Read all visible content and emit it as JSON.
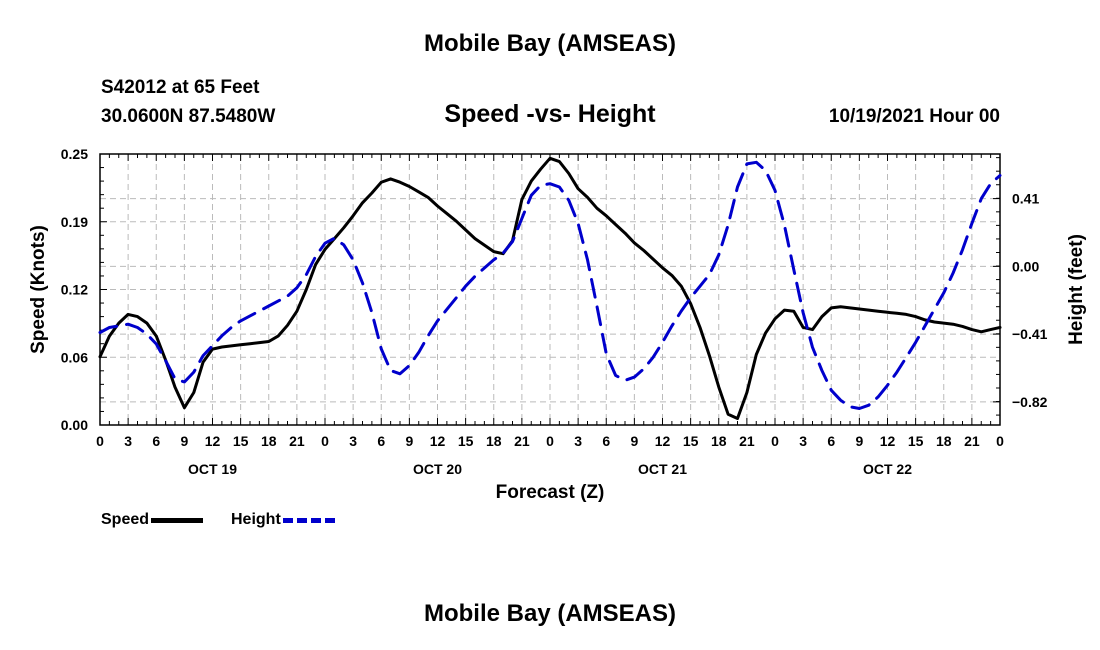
{
  "title": "Mobile Bay (AMSEAS)",
  "station": "S42012 at 65 Feet",
  "coords": "30.0600N  87.5480W",
  "valid_time": "10/19/2021 Hour 00",
  "footer_title": "Mobile Bay (AMSEAS)",
  "legend": {
    "speed": "Speed",
    "height": "Height"
  },
  "colors": {
    "speed": "#000000",
    "height": "#0000cc",
    "grid": "#bbbbbb"
  },
  "chart_data": {
    "type": "line",
    "title": "Speed -vs- Height",
    "xlabel": "Forecast (Z)",
    "ylabel": "Speed (Knots)",
    "y2label": "Height (feet)",
    "xlim": [
      0,
      96
    ],
    "ylim": [
      0,
      0.25
    ],
    "y2lim": [
      -0.96,
      0.68
    ],
    "yticks": [
      "0.00",
      "0.06",
      "0.12",
      "0.19",
      "0.25"
    ],
    "y2ticks": [
      {
        "value": 0.41,
        "label": "0.41"
      },
      {
        "value": 0.0,
        "label": "0.00"
      },
      {
        "value": -0.41,
        "label": "−0.41"
      },
      {
        "value": -0.82,
        "label": "−0.82"
      }
    ],
    "xticks": [
      "0",
      "3",
      "6",
      "9",
      "12",
      "15",
      "18",
      "21",
      "0",
      "3",
      "6",
      "9",
      "12",
      "15",
      "18",
      "21",
      "0",
      "3",
      "6",
      "9",
      "12",
      "15",
      "18",
      "21",
      "0",
      "3",
      "6",
      "9",
      "12",
      "15",
      "18",
      "21",
      "0"
    ],
    "day_labels": [
      {
        "hour": 12,
        "label": "OCT 19"
      },
      {
        "hour": 36,
        "label": "OCT 20"
      },
      {
        "hour": 60,
        "label": "OCT 21"
      },
      {
        "hour": 84,
        "label": "OCT 22"
      }
    ],
    "grid": true,
    "series": [
      {
        "name": "Speed",
        "axis": "left",
        "style": "solid",
        "x": [
          0,
          1,
          2,
          3,
          4,
          5,
          6,
          7,
          8,
          9,
          10,
          11,
          12,
          13,
          14,
          15,
          16,
          17,
          18,
          19,
          20,
          21,
          22,
          23,
          24,
          25,
          26,
          27,
          28,
          29,
          30,
          31,
          32,
          33,
          34,
          35,
          36,
          37,
          38,
          39,
          40,
          41,
          42,
          43,
          44,
          45,
          46,
          47,
          48,
          49,
          50,
          51,
          52,
          53,
          54,
          55,
          56,
          57,
          58,
          59,
          60,
          61,
          62,
          63,
          64,
          65,
          66,
          67,
          68,
          69,
          70,
          71,
          72,
          73,
          74,
          75,
          76,
          77,
          78,
          79,
          80,
          81,
          82,
          83,
          84,
          85,
          86,
          87,
          88,
          89,
          90,
          91,
          92,
          93,
          94,
          95,
          96
        ],
        "values": [
          0.063,
          0.082,
          0.094,
          0.102,
          0.1,
          0.094,
          0.082,
          0.06,
          0.035,
          0.016,
          0.03,
          0.058,
          0.07,
          0.072,
          0.073,
          0.074,
          0.075,
          0.076,
          0.077,
          0.082,
          0.092,
          0.105,
          0.125,
          0.148,
          0.162,
          0.172,
          0.182,
          0.193,
          0.205,
          0.214,
          0.224,
          0.227,
          0.224,
          0.22,
          0.215,
          0.21,
          0.202,
          0.195,
          0.188,
          0.18,
          0.172,
          0.166,
          0.16,
          0.158,
          0.17,
          0.208,
          0.225,
          0.236,
          0.246,
          0.243,
          0.232,
          0.218,
          0.21,
          0.2,
          0.193,
          0.185,
          0.177,
          0.168,
          0.161,
          0.153,
          0.145,
          0.138,
          0.128,
          0.112,
          0.09,
          0.064,
          0.035,
          0.01,
          0.006,
          0.03,
          0.065,
          0.085,
          0.098,
          0.106,
          0.105,
          0.09,
          0.088,
          0.1,
          0.108,
          0.109,
          0.108,
          0.107,
          0.106,
          0.105,
          0.104,
          0.103,
          0.102,
          0.1,
          0.097,
          0.095,
          0.094,
          0.093,
          0.091,
          0.088,
          0.086,
          0.088,
          0.09
        ]
      },
      {
        "name": "Height",
        "axis": "right",
        "style": "dashed",
        "x": [
          0,
          1,
          2,
          3,
          4,
          5,
          6,
          7,
          8,
          9,
          10,
          11,
          12,
          13,
          14,
          15,
          16,
          17,
          18,
          19,
          20,
          21,
          22,
          23,
          24,
          25,
          26,
          27,
          28,
          29,
          30,
          31,
          32,
          33,
          34,
          35,
          36,
          37,
          38,
          39,
          40,
          41,
          42,
          43,
          44,
          45,
          46,
          47,
          48,
          49,
          50,
          51,
          52,
          53,
          54,
          55,
          56,
          57,
          58,
          59,
          60,
          61,
          62,
          63,
          64,
          65,
          66,
          67,
          68,
          69,
          70,
          71,
          72,
          73,
          74,
          75,
          76,
          77,
          78,
          79,
          80,
          81,
          82,
          83,
          84,
          85,
          86,
          87,
          88,
          89,
          90,
          91,
          92,
          93,
          94,
          95,
          96
        ],
        "values": [
          -0.4,
          -0.37,
          -0.36,
          -0.35,
          -0.37,
          -0.41,
          -0.47,
          -0.57,
          -0.68,
          -0.7,
          -0.64,
          -0.54,
          -0.48,
          -0.42,
          -0.37,
          -0.33,
          -0.3,
          -0.27,
          -0.24,
          -0.21,
          -0.18,
          -0.13,
          -0.05,
          0.06,
          0.14,
          0.17,
          0.13,
          0.04,
          -0.1,
          -0.28,
          -0.5,
          -0.63,
          -0.65,
          -0.6,
          -0.52,
          -0.42,
          -0.33,
          -0.26,
          -0.19,
          -0.12,
          -0.06,
          -0.01,
          0.04,
          0.08,
          0.15,
          0.29,
          0.43,
          0.49,
          0.5,
          0.48,
          0.4,
          0.26,
          0.04,
          -0.24,
          -0.53,
          -0.66,
          -0.69,
          -0.67,
          -0.62,
          -0.55,
          -0.46,
          -0.36,
          -0.27,
          -0.19,
          -0.12,
          -0.05,
          0.07,
          0.25,
          0.48,
          0.62,
          0.63,
          0.58,
          0.46,
          0.25,
          -0.02,
          -0.28,
          -0.49,
          -0.63,
          -0.75,
          -0.81,
          -0.85,
          -0.86,
          -0.84,
          -0.79,
          -0.72,
          -0.64,
          -0.55,
          -0.46,
          -0.36,
          -0.26,
          -0.16,
          -0.04,
          0.1,
          0.26,
          0.41,
          0.5,
          0.55
        ]
      }
    ]
  }
}
